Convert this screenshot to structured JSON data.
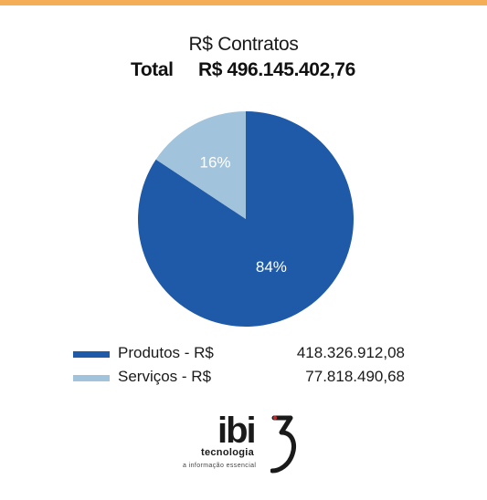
{
  "colors": {
    "accent_bar": "#f6ad57",
    "produtos": "#1e5aa8",
    "servicos": "#a2c3dc",
    "logo_accent": "#c0282d"
  },
  "header": {
    "title": "R$ Contratos",
    "total_label": "Total",
    "total_value": "R$ 496.145.402,76"
  },
  "chart_data": {
    "type": "pie",
    "title": "R$ Contratos",
    "slices": [
      {
        "label": "Produtos - R$",
        "value": 418326912.08,
        "value_text": "418.326.912,08",
        "percent": 84,
        "percent_text": "84%",
        "color": "#1e5aa8"
      },
      {
        "label": "Serviços - R$",
        "value": 77818490.68,
        "value_text": "77.818.490,68",
        "percent": 16,
        "percent_text": "16%",
        "color": "#a2c3dc"
      }
    ],
    "legend_position": "bottom"
  },
  "logo": {
    "brand": "ibi",
    "subtitle": "tecnologia",
    "tagline": "a informação essencial",
    "icon": "ibi3-logo-icon"
  }
}
